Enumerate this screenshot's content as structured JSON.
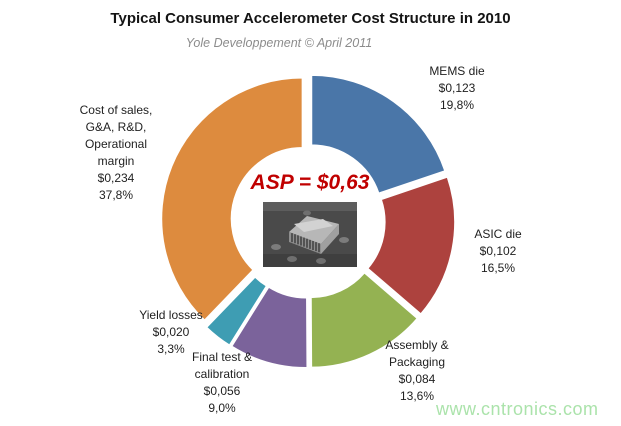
{
  "chart_data": {
    "type": "pie",
    "variant": "exploded-donut",
    "title": "Typical Consumer Accelerometer Cost Structure in 2010",
    "subtitle": "Yole Developpement © April 2011",
    "center_label": "ASP = $0,63",
    "center_label_color": "#c00000",
    "center_image": "mems-accelerometer-chip-grayscale-photo",
    "legend_position": "labels-around-slices",
    "start_angle_deg": 0,
    "direction": "clockwise",
    "slices": [
      {
        "name": "MEMS die",
        "display": "MEMS die",
        "value": 0.123,
        "value_label": "$0,123",
        "pct": 19.8,
        "pct_label": "19,8%",
        "color": "#4A76A8"
      },
      {
        "name": "ASIC die",
        "display": "ASIC die",
        "value": 0.102,
        "value_label": "$0,102",
        "pct": 16.5,
        "pct_label": "16,5%",
        "color": "#AD423E"
      },
      {
        "name": "Assembly & Packaging",
        "display": "Assembly &\nPackaging",
        "value": 0.084,
        "value_label": "$0,084",
        "pct": 13.6,
        "pct_label": "13,6%",
        "color": "#94B252"
      },
      {
        "name": "Final test & calibration",
        "display": "Final test &\ncalibration",
        "value": 0.056,
        "value_label": "$0,056",
        "pct": 9.0,
        "pct_label": "9,0%",
        "color": "#7B639B"
      },
      {
        "name": "Yield losses",
        "display": "Yield losses",
        "value": 0.02,
        "value_label": "$0,020",
        "pct": 3.3,
        "pct_label": "3,3%",
        "color": "#3E9DB3"
      },
      {
        "name": "Cost of sales, G&A, R&D, Operational margin",
        "display": "Cost of sales,\nG&A, R&D,\nOperational\nmargin",
        "value": 0.234,
        "value_label": "$0,234",
        "pct": 37.8,
        "pct_label": "37,8%",
        "color": "#DD8B3E"
      }
    ]
  },
  "watermark": {
    "text": "www.cntronics.com",
    "color": "#abe3ab"
  }
}
